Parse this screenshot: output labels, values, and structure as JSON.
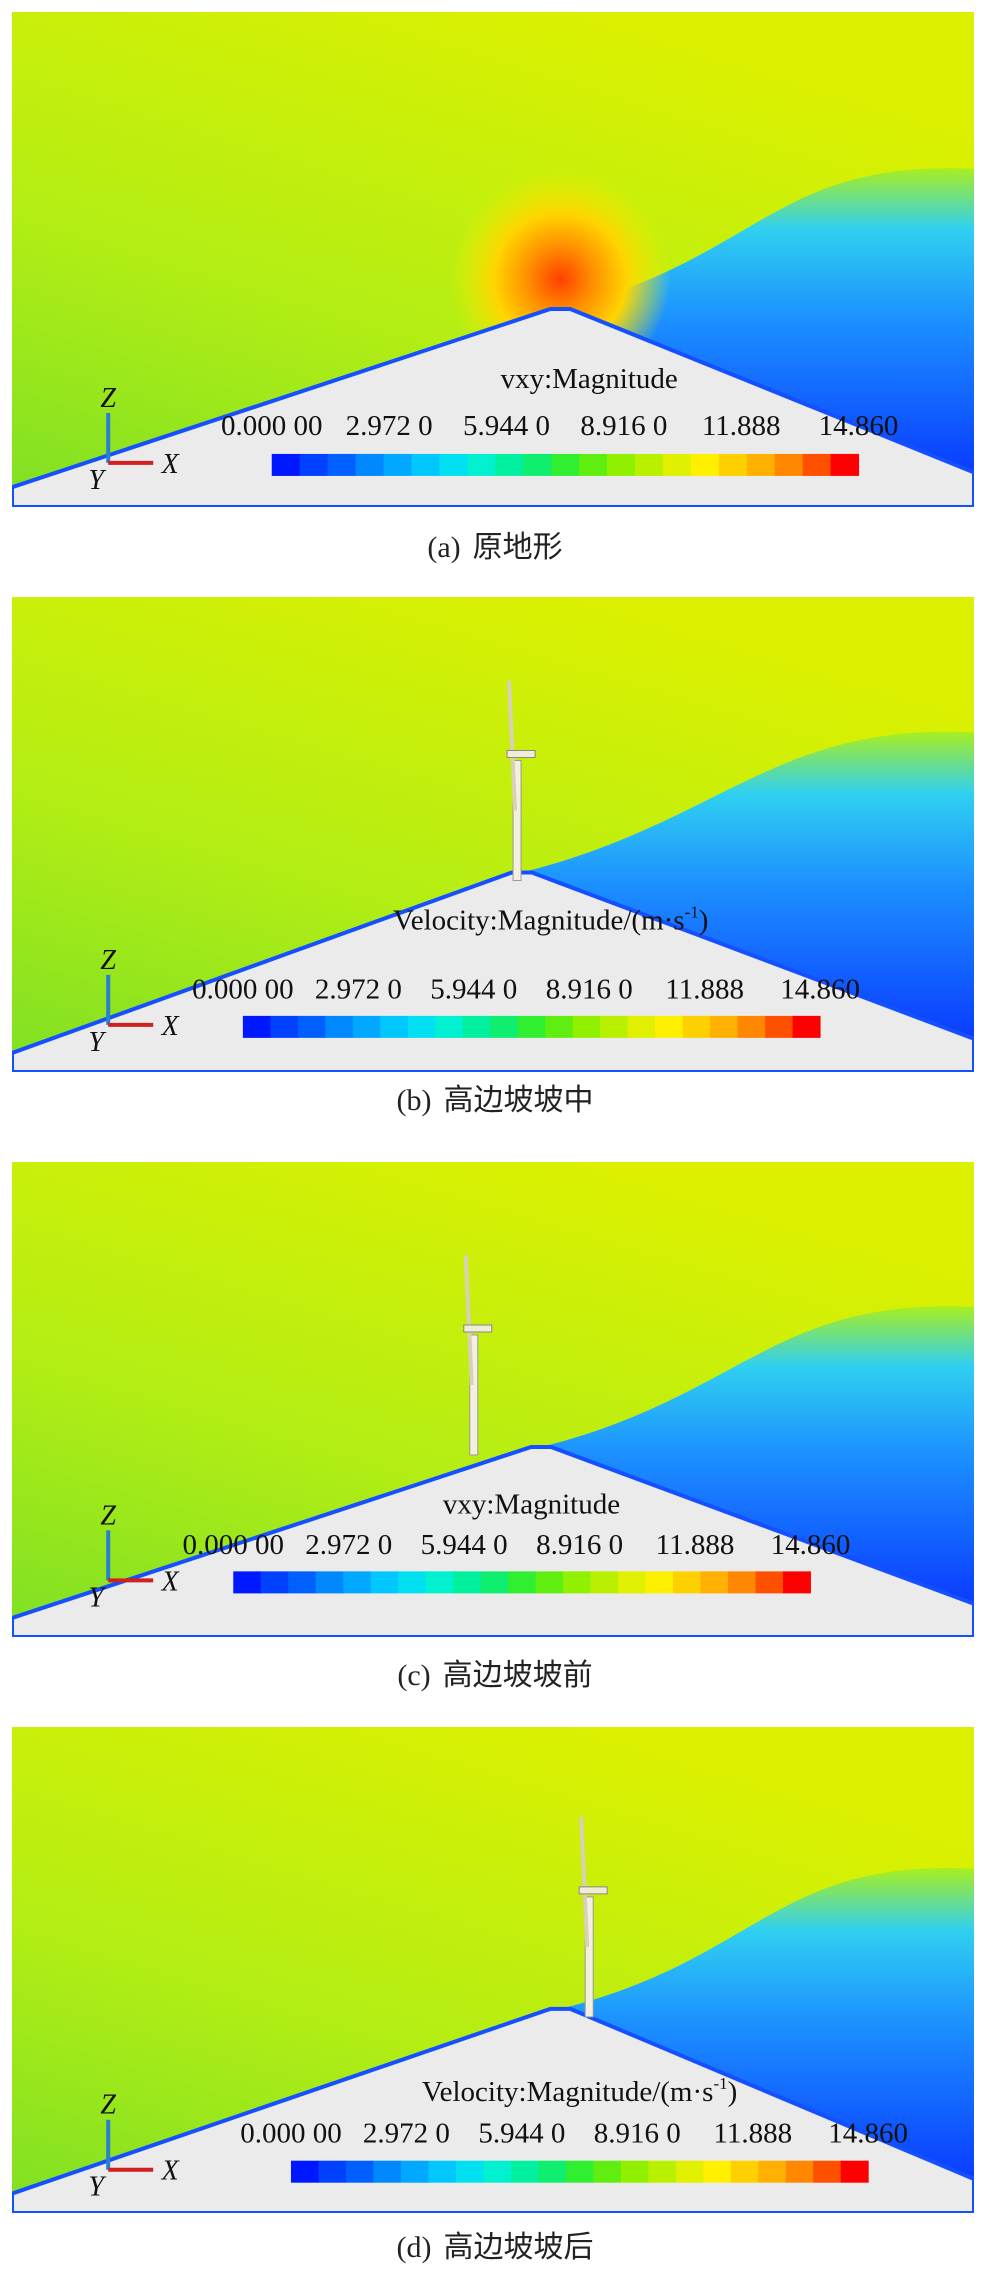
{
  "panels": [
    {
      "legend_title": "vxy:Magnitude",
      "legend_ticks": [
        "0.000 00",
        "2.972 0",
        "5.944 0",
        "8.916 0",
        "11.888",
        "14.860"
      ],
      "axes": [
        "Z",
        "Y",
        "X"
      ],
      "caption_label": "(a)",
      "caption": "原地形"
    },
    {
      "legend_title": "Velocity:Magnitude/(m·s",
      "legend_title_sup": "-1",
      "legend_title_end": ")",
      "legend_ticks": [
        "0.000 00",
        "2.972 0",
        "5.944 0",
        "8.916 0",
        "11.888",
        "14.860"
      ],
      "axes": [
        "Z",
        "Y",
        "X"
      ],
      "caption_label": "(b)",
      "caption": "高边坡坡中"
    },
    {
      "legend_title": "vxy:Magnitude",
      "legend_ticks": [
        "0.000 00",
        "2.972 0",
        "5.944 0",
        "8.916 0",
        "11.888",
        "14.860"
      ],
      "axes": [
        "Z",
        "Y",
        "X"
      ],
      "caption_label": "(c)",
      "caption": "高边坡坡前"
    },
    {
      "legend_title": "Velocity:Magnitude/(m·s",
      "legend_title_sup": "-1",
      "legend_title_end": ")",
      "legend_ticks": [
        "0.000 00",
        "2.972 0",
        "5.944 0",
        "8.916 0",
        "11.888",
        "14.860"
      ],
      "axes": [
        "Z",
        "Y",
        "X"
      ],
      "caption_label": "(d)",
      "caption": "高边坡坡后"
    }
  ]
}
